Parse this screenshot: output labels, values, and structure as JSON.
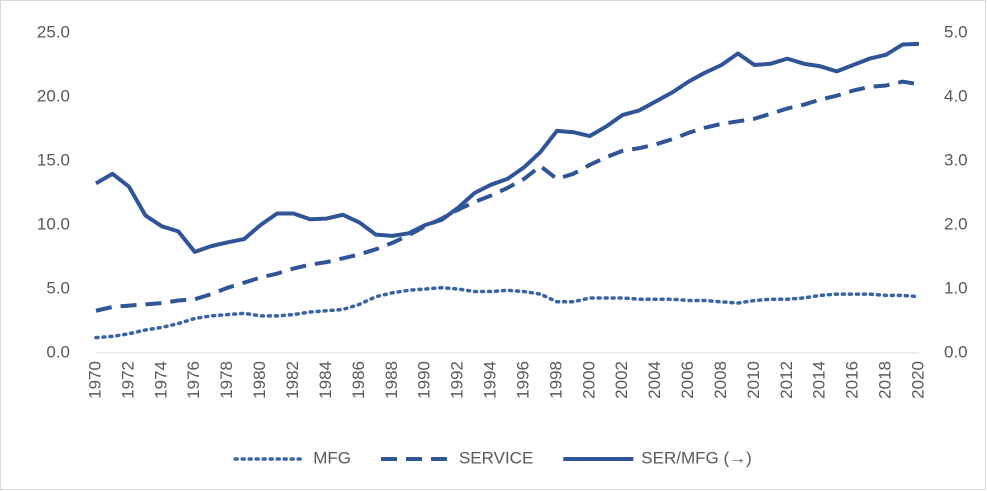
{
  "chart_data": {
    "type": "line",
    "x": [
      1970,
      1971,
      1972,
      1973,
      1974,
      1975,
      1976,
      1977,
      1978,
      1979,
      1980,
      1981,
      1982,
      1983,
      1984,
      1985,
      1986,
      1987,
      1988,
      1989,
      1990,
      1991,
      1992,
      1993,
      1994,
      1995,
      1996,
      1997,
      1998,
      1999,
      2000,
      2001,
      2002,
      2003,
      2004,
      2005,
      2006,
      2007,
      2008,
      2009,
      2010,
      2011,
      2012,
      2013,
      2014,
      2015,
      2016,
      2017,
      2018,
      2019,
      2020
    ],
    "series": [
      {
        "name": "MFG",
        "color": "#3a64a6",
        "style": "dotted",
        "values": [
          1.2,
          1.3,
          1.5,
          1.8,
          2.0,
          2.3,
          2.7,
          2.9,
          3.0,
          3.1,
          2.9,
          2.9,
          3.0,
          3.2,
          3.3,
          3.4,
          3.8,
          4.4,
          4.7,
          4.9,
          5.0,
          5.1,
          5.0,
          4.8,
          4.8,
          4.9,
          4.8,
          4.6,
          4.0,
          4.0,
          4.3,
          4.3,
          4.3,
          4.2,
          4.2,
          4.2,
          4.1,
          4.1,
          4.0,
          3.9,
          4.1,
          4.2,
          4.2,
          4.3,
          4.5,
          4.6,
          4.6,
          4.6,
          4.5,
          4.5,
          4.4
        ]
      },
      {
        "name": "SERVICE",
        "color": "#2f5597",
        "style": "dashed",
        "values": [
          3.3,
          3.6,
          3.7,
          3.8,
          3.9,
          4.1,
          4.2,
          4.6,
          5.1,
          5.5,
          5.9,
          6.2,
          6.6,
          6.9,
          7.1,
          7.4,
          7.7,
          8.1,
          8.6,
          9.2,
          9.9,
          10.5,
          11.2,
          11.8,
          12.3,
          12.9,
          13.6,
          14.6,
          13.6,
          14.0,
          14.7,
          15.3,
          15.8,
          16.0,
          16.3,
          16.7,
          17.2,
          17.6,
          17.9,
          18.1,
          18.3,
          18.7,
          19.1,
          19.4,
          19.8,
          20.1,
          20.5,
          20.8,
          20.9,
          21.2,
          21.0
        ]
      },
      {
        "name": "SER/MFG (→)",
        "color": "#2f5597",
        "style": "solid",
        "axis": "y2",
        "values": [
          2.65,
          2.8,
          2.6,
          2.15,
          1.98,
          1.9,
          1.58,
          1.67,
          1.73,
          1.78,
          2.0,
          2.18,
          2.18,
          2.09,
          2.1,
          2.16,
          2.04,
          1.85,
          1.83,
          1.87,
          2.0,
          2.08,
          2.27,
          2.5,
          2.63,
          2.72,
          2.9,
          3.14,
          3.47,
          3.45,
          3.39,
          3.54,
          3.72,
          3.79,
          3.93,
          4.07,
          4.24,
          4.38,
          4.5,
          4.68,
          4.5,
          4.52,
          4.6,
          4.52,
          4.48,
          4.4,
          4.5,
          4.6,
          4.66,
          4.82,
          4.83
        ]
      }
    ],
    "xlim": [
      1970,
      2020
    ],
    "xticks": [
      1970,
      1972,
      1974,
      1976,
      1978,
      1980,
      1982,
      1984,
      1986,
      1988,
      1990,
      1992,
      1994,
      1996,
      1998,
      2000,
      2002,
      2004,
      2006,
      2008,
      2010,
      2012,
      2014,
      2016,
      2018,
      2020
    ],
    "ylim": [
      0,
      25
    ],
    "yticks": [
      {
        "value": 0,
        "label": "0.0"
      },
      {
        "value": 5,
        "label": "5.0"
      },
      {
        "value": 10,
        "label": "10.0"
      },
      {
        "value": 15,
        "label": "15.0"
      },
      {
        "value": 20,
        "label": "20.0"
      },
      {
        "value": 25,
        "label": "25.0"
      }
    ],
    "y2lim": [
      0,
      5
    ],
    "y2ticks": [
      {
        "value": 0,
        "label": "0.0"
      },
      {
        "value": 1,
        "label": "1.0"
      },
      {
        "value": 2,
        "label": "2.0"
      },
      {
        "value": 3,
        "label": "3.0"
      },
      {
        "value": 4,
        "label": "4.0"
      },
      {
        "value": 5,
        "label": "5.0"
      }
    ],
    "grid": false,
    "legend": "bottom"
  }
}
